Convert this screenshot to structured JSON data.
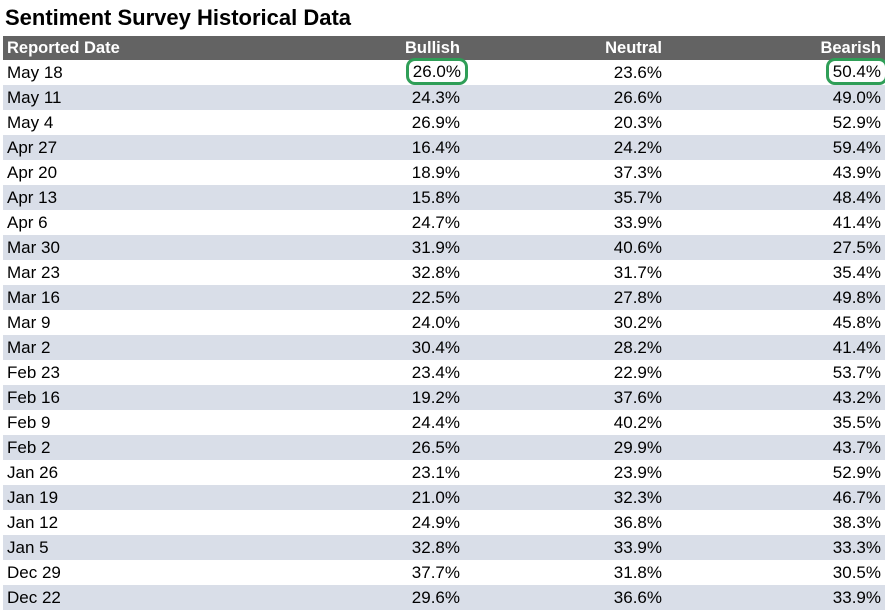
{
  "title": "Sentiment Survey Historical Data",
  "columns": [
    "Reported Date",
    "Bullish",
    "Neutral",
    "Bearish"
  ],
  "highlight_color": "#2f9e57",
  "header_color": "#636363",
  "stripe_color": "#d9dee8",
  "rows": [
    [
      "May 18",
      "26.0%",
      "23.6%",
      "50.4%"
    ],
    [
      "May 11",
      "24.3%",
      "26.6%",
      "49.0%"
    ],
    [
      "May 4",
      "26.9%",
      "20.3%",
      "52.9%"
    ],
    [
      "Apr 27",
      "16.4%",
      "24.2%",
      "59.4%"
    ],
    [
      "Apr 20",
      "18.9%",
      "37.3%",
      "43.9%"
    ],
    [
      "Apr 13",
      "15.8%",
      "35.7%",
      "48.4%"
    ],
    [
      "Apr 6",
      "24.7%",
      "33.9%",
      "41.4%"
    ],
    [
      "Mar 30",
      "31.9%",
      "40.6%",
      "27.5%"
    ],
    [
      "Mar 23",
      "32.8%",
      "31.7%",
      "35.4%"
    ],
    [
      "Mar 16",
      "22.5%",
      "27.8%",
      "49.8%"
    ],
    [
      "Mar 9",
      "24.0%",
      "30.2%",
      "45.8%"
    ],
    [
      "Mar 2",
      "30.4%",
      "28.2%",
      "41.4%"
    ],
    [
      "Feb 23",
      "23.4%",
      "22.9%",
      "53.7%"
    ],
    [
      "Feb 16",
      "19.2%",
      "37.6%",
      "43.2%"
    ],
    [
      "Feb 9",
      "24.4%",
      "40.2%",
      "35.5%"
    ],
    [
      "Feb 2",
      "26.5%",
      "29.9%",
      "43.7%"
    ],
    [
      "Jan 26",
      "23.1%",
      "23.9%",
      "52.9%"
    ],
    [
      "Jan 19",
      "21.0%",
      "32.3%",
      "46.7%"
    ],
    [
      "Jan 12",
      "24.9%",
      "36.8%",
      "38.3%"
    ],
    [
      "Jan 5",
      "32.8%",
      "33.9%",
      "33.3%"
    ],
    [
      "Dec 29",
      "37.7%",
      "31.8%",
      "30.5%"
    ],
    [
      "Dec 22",
      "29.6%",
      "36.6%",
      "33.9%"
    ]
  ]
}
